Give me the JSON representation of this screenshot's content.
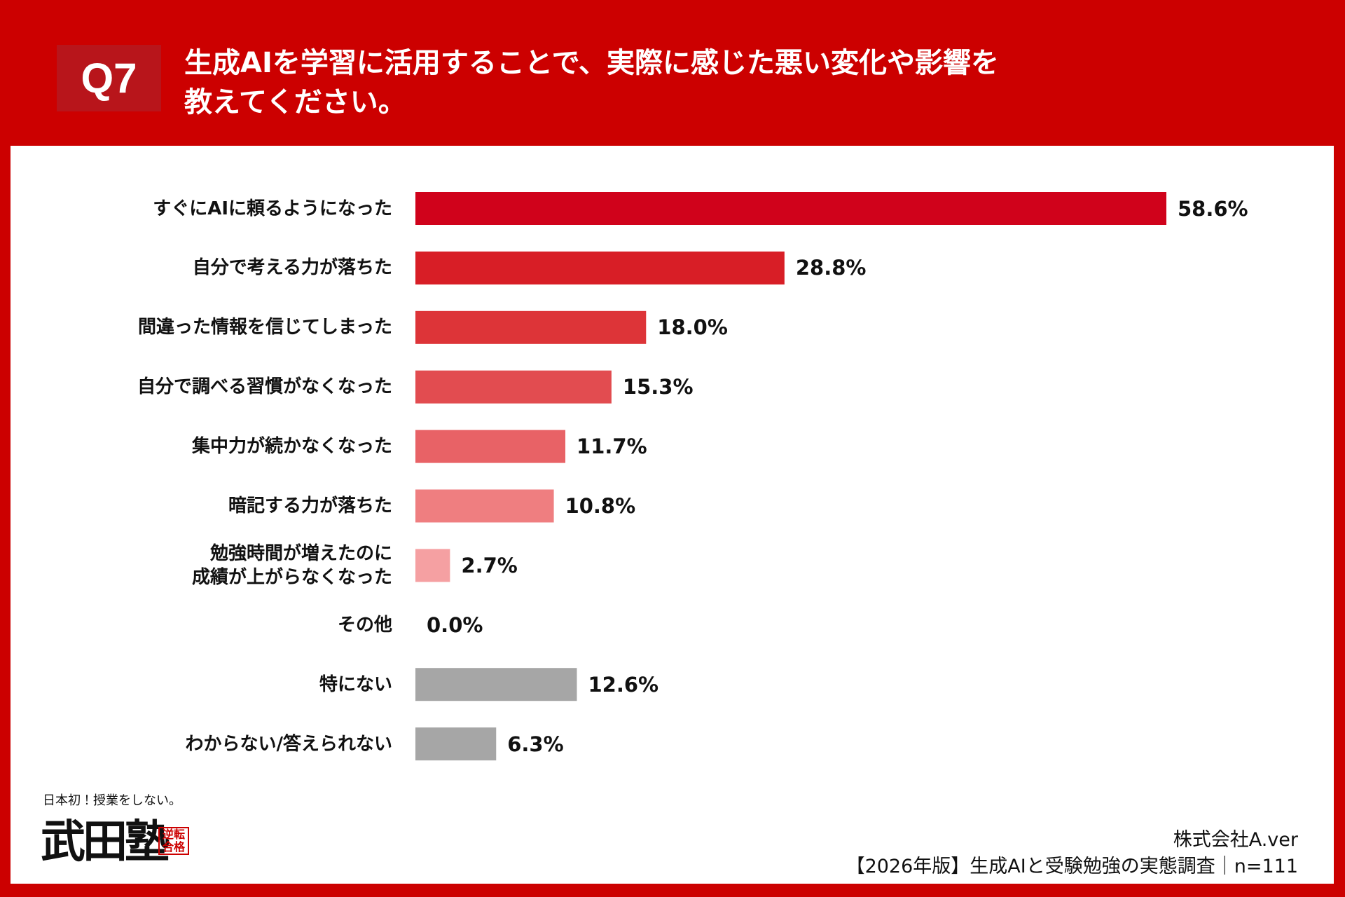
{
  "badge": "Q7",
  "chart_data": {
    "type": "hbar",
    "title": "生成AIを学習に活用することで、実際に感じた悪い変化や影響を\n教えてください。",
    "categories": [
      "すぐにAIに頼るようになった",
      "自分で考える力が落ちた",
      "間違った情報を信じてしまった",
      "自分で調べる習慣がなくなった",
      "集中力が続かなくなった",
      "暗記する力が落ちた",
      "勉強時間が増えたのに\n成績が上がらなくなった",
      "その他",
      "特にない",
      "わからない/答えられない"
    ],
    "values": [
      58.6,
      28.8,
      18.0,
      15.3,
      11.7,
      10.8,
      2.7,
      0.0,
      12.6,
      6.3
    ],
    "value_labels": [
      "58.6%",
      "28.8%",
      "18.0%",
      "15.3%",
      "11.7%",
      "10.8%",
      "2.7%",
      "0.0%",
      "12.6%",
      "6.3%"
    ],
    "colors": [
      "#d0021b",
      "#d81e26",
      "#dd3438",
      "#e24c50",
      "#e86266",
      "#ef7e80",
      "#f5a0a2",
      "#f5a0a2",
      "#a6a6a6",
      "#a6a6a6"
    ]
  },
  "logo": {
    "tagline": "日本初！授業をしない。",
    "name": "武田塾",
    "stamp": "逆転合格"
  },
  "footer": {
    "company": "株式会社A.ver",
    "source": "【2026年版】生成AIと受験勉強の実態調査｜n=111"
  }
}
